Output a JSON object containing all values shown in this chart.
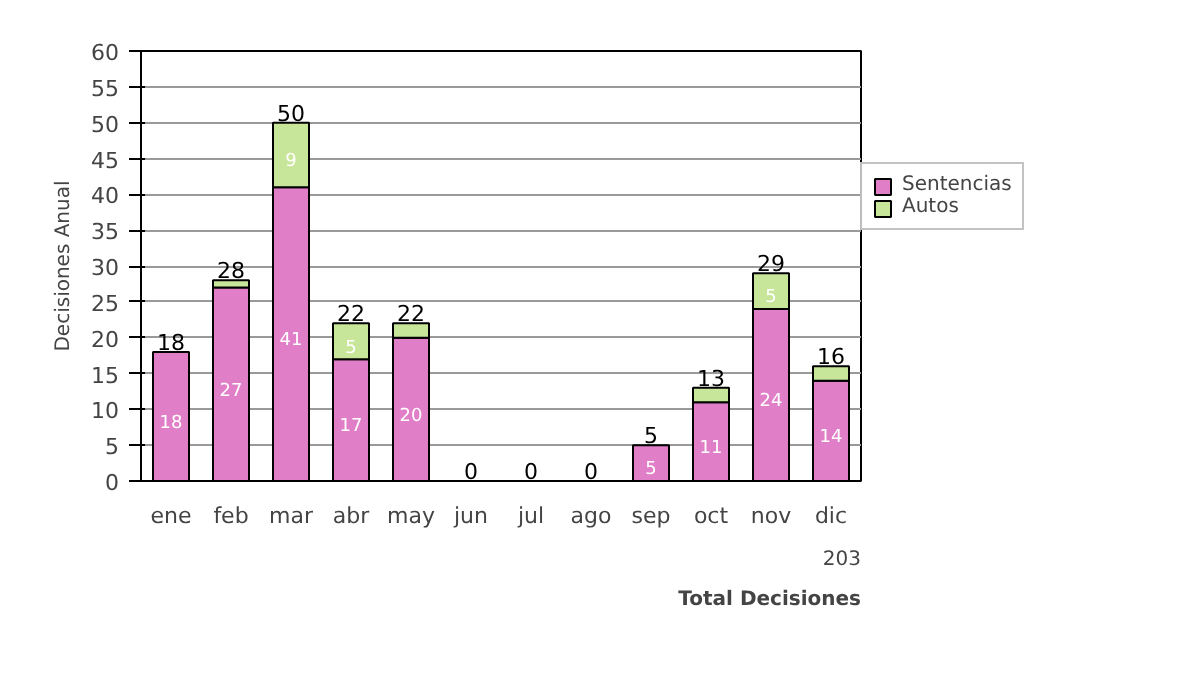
{
  "chart_data": {
    "type": "bar",
    "stacked": true,
    "ylabel": "Decisiones Anual",
    "categories": [
      "ene",
      "feb",
      "mar",
      "abr",
      "may",
      "jun",
      "jul",
      "ago",
      "sep",
      "oct",
      "nov",
      "dic"
    ],
    "series": [
      {
        "name": "Sentencias",
        "color": "#e07fc8",
        "values": [
          18,
          27,
          41,
          17,
          20,
          0,
          0,
          0,
          5,
          11,
          24,
          14
        ],
        "value_labels": [
          "18",
          "27",
          "41",
          "17",
          "20",
          null,
          null,
          null,
          "5",
          "11",
          "24",
          "14"
        ]
      },
      {
        "name": "Autos",
        "color": "#c8e69a",
        "values": [
          0,
          1,
          9,
          5,
          2,
          0,
          0,
          0,
          0,
          2,
          5,
          2
        ],
        "value_labels": [
          null,
          null,
          "9",
          "5",
          null,
          null,
          null,
          null,
          null,
          null,
          "5",
          null
        ]
      }
    ],
    "totals": [
      "18",
      "28",
      "50",
      "22",
      "22",
      "0",
      "0",
      "0",
      "5",
      "13",
      "29",
      "16"
    ],
    "ylim": [
      0,
      60
    ],
    "yticks": [
      0,
      5,
      10,
      15,
      20,
      25,
      30,
      35,
      40,
      45,
      50,
      55,
      60
    ],
    "grid": "y",
    "legend": "right",
    "annotations": [
      "Total Decisiones",
      "203"
    ]
  }
}
